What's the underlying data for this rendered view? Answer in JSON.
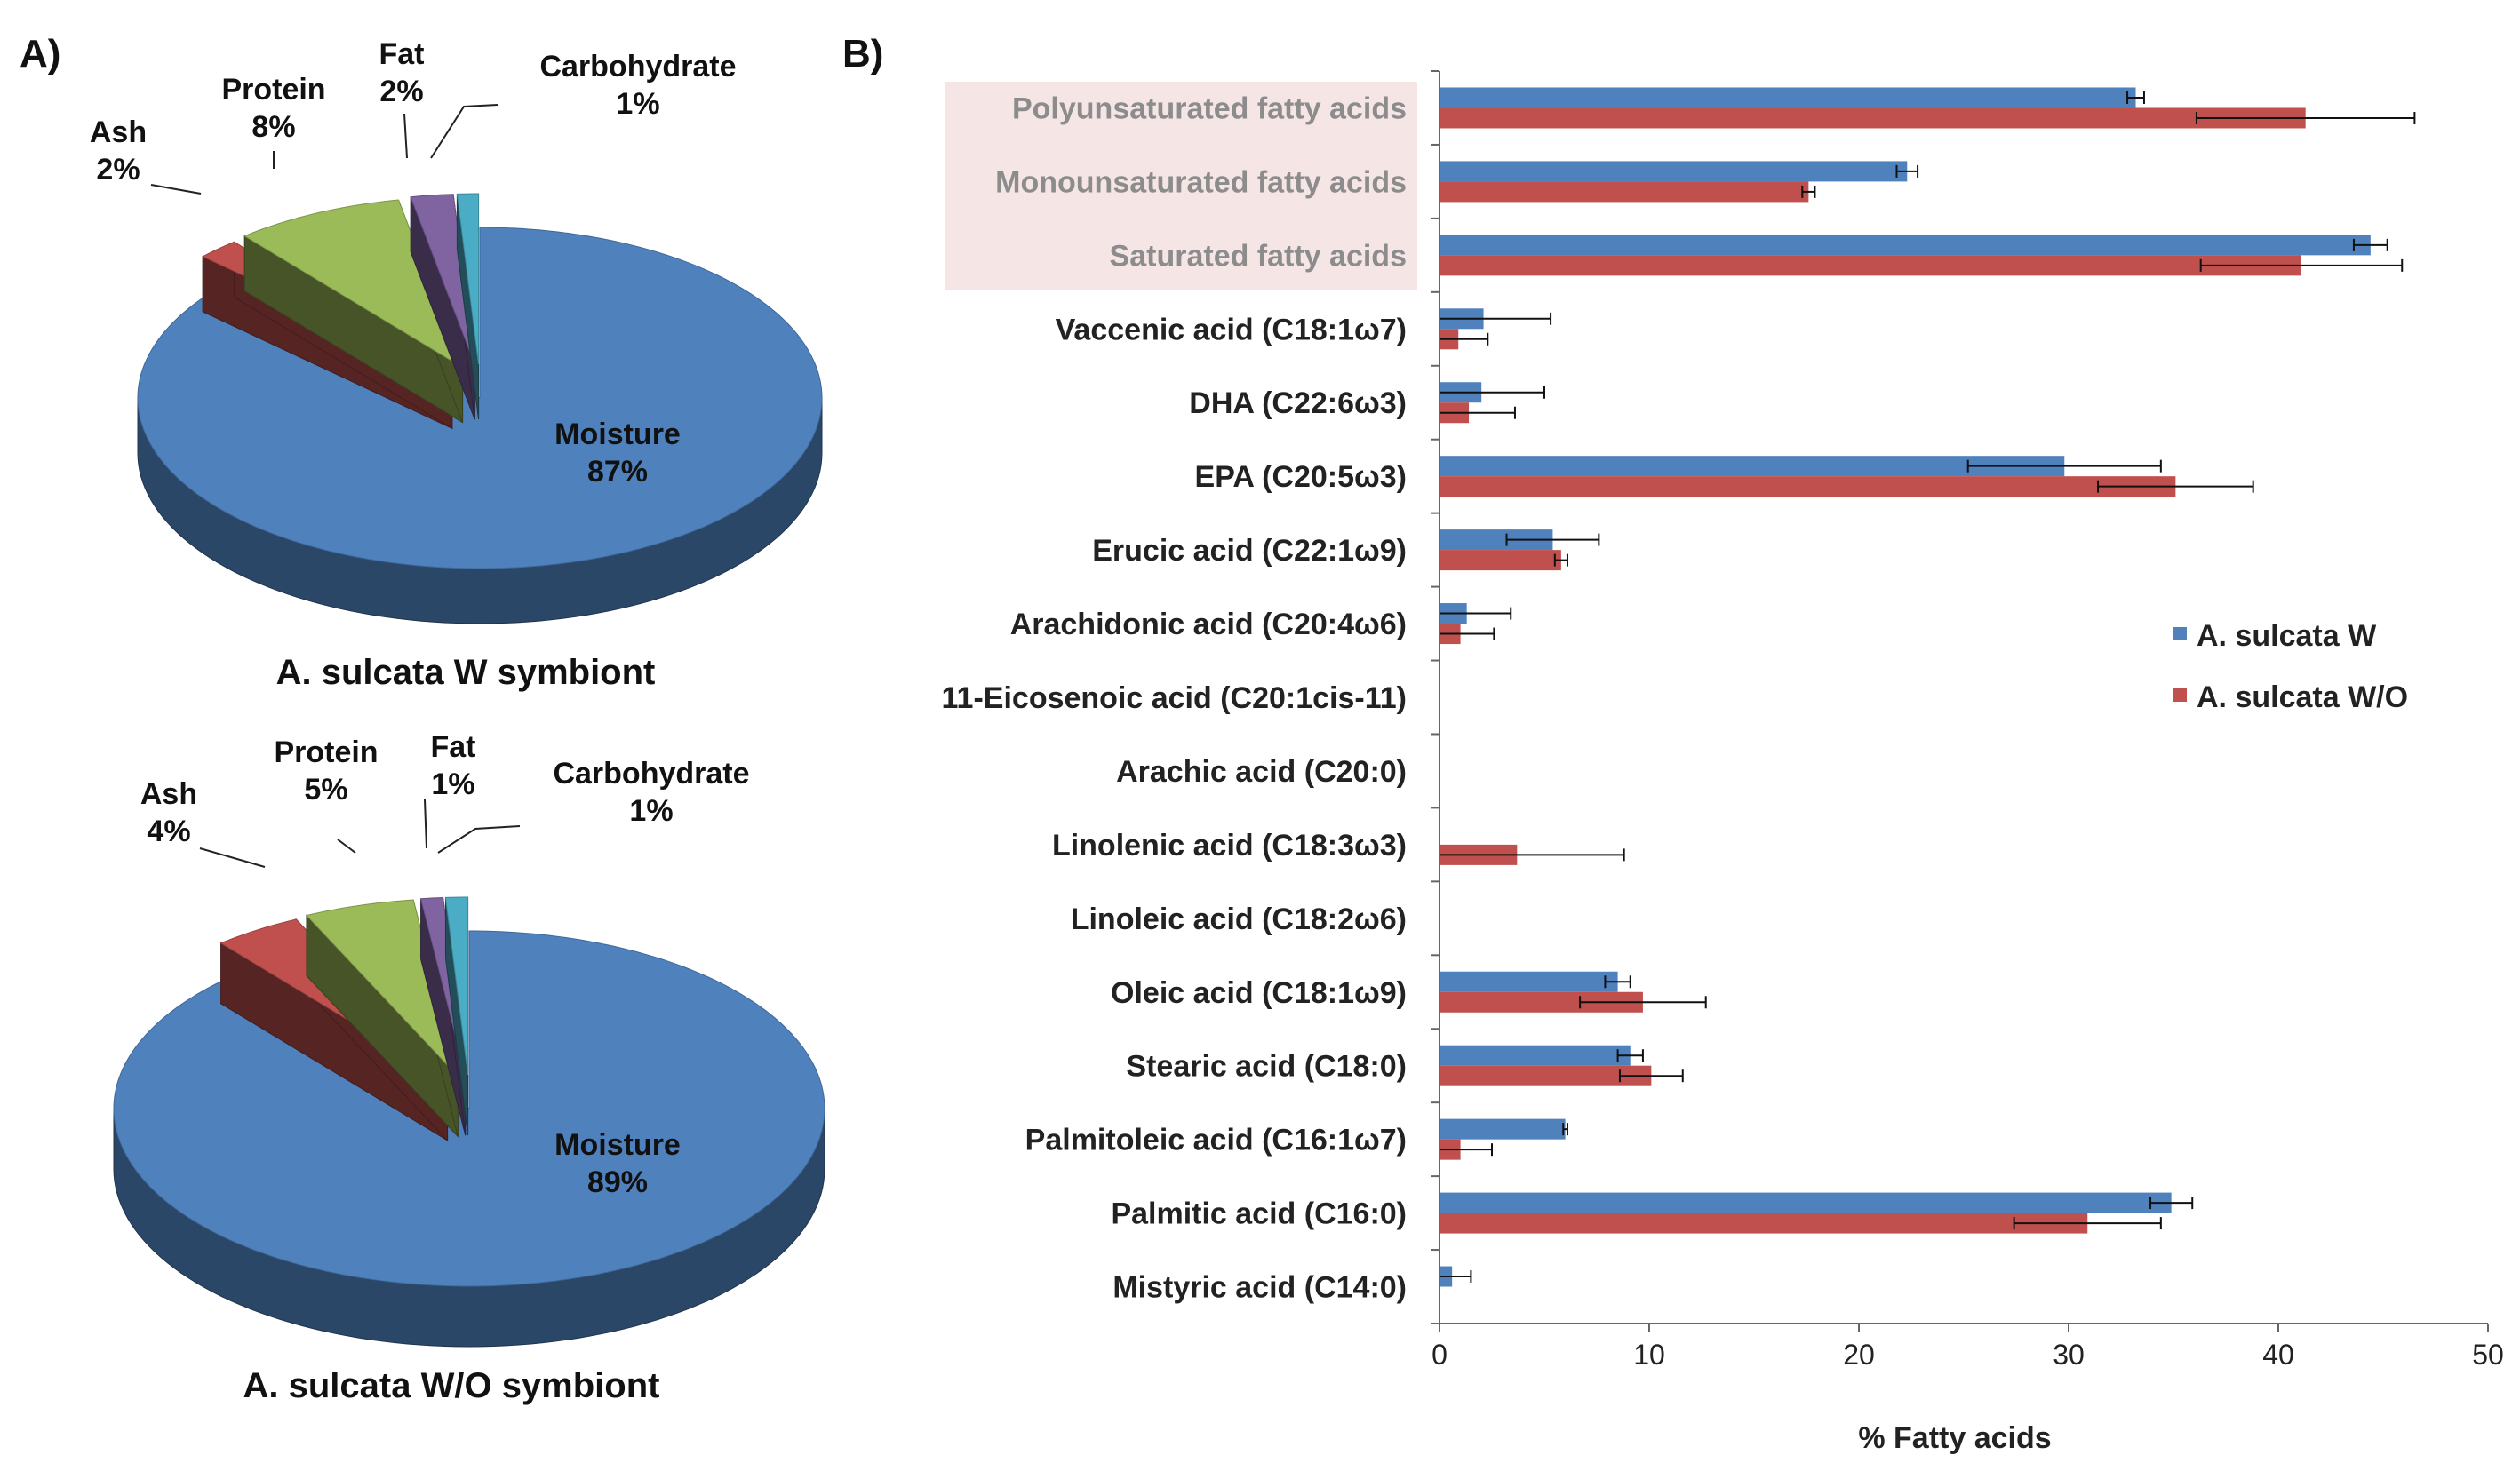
{
  "chart_data": [
    {
      "panel": "A)",
      "type": "pie",
      "title": "A. sulcata W symbiont",
      "slices": [
        {
          "label": "Moisture",
          "value": 87,
          "display": "87%",
          "color": "#4F81BD"
        },
        {
          "label": "Ash",
          "value": 2,
          "display": "2%",
          "color": "#C0504D"
        },
        {
          "label": "Protein",
          "value": 8,
          "display": "8%",
          "color": "#9BBB59"
        },
        {
          "label": "Fat",
          "value": 2,
          "display": "2%",
          "color": "#8064A2"
        },
        {
          "label": "Carbohydrate",
          "value": 1,
          "display": "1%",
          "color": "#4BACC6"
        }
      ]
    },
    {
      "type": "pie",
      "title": "A. sulcata W/O symbiont",
      "slices": [
        {
          "label": "Moisture",
          "value": 89,
          "display": "89%",
          "color": "#4F81BD"
        },
        {
          "label": "Ash",
          "value": 4,
          "display": "4%",
          "color": "#C0504D"
        },
        {
          "label": "Protein",
          "value": 5,
          "display": "5%",
          "color": "#9BBB59"
        },
        {
          "label": "Fat",
          "value": 1,
          "display": "1%",
          "color": "#8064A2"
        },
        {
          "label": "Carbohydrate",
          "value": 1,
          "display": "1%",
          "color": "#4BACC6"
        }
      ]
    },
    {
      "panel": "B)",
      "type": "bar",
      "orientation": "horizontal",
      "xlabel": "% Fatty acids",
      "xlim": [
        0,
        50
      ],
      "xticks": [
        0,
        10,
        20,
        30,
        40,
        50
      ],
      "legend": "right",
      "highlighted_categories": [
        "Polyunsaturated fatty acids",
        "Monounsaturated fatty acids",
        "Saturated fatty acids"
      ],
      "categories": [
        "Polyunsaturated fatty acids",
        "Monounsaturated fatty acids",
        "Saturated fatty acids",
        "Vaccenic acid (C18:1ω7)",
        "DHA (C22:6ω3)",
        "EPA (C20:5ω3)",
        "Erucic acid (C22:1ω9)",
        "Arachidonic acid (C20:4ω6)",
        "11-Eicosenoic acid (C20:1cis-11)",
        "Arachic acid (C20:0)",
        "Linolenic acid (C18:3ω3)",
        "Linoleic acid (C18:2ω6)",
        "Oleic acid (C18:1ω9)",
        "Stearic acid (C18:0)",
        "Palmitoleic acid (C16:1ω7)",
        "Palmitic acid (C16:0)",
        "Mistyric acid (C14:0)"
      ],
      "series": [
        {
          "name": "A. sulcata W",
          "color": "#4F81BD",
          "values": [
            33.2,
            22.3,
            44.4,
            2.1,
            2.0,
            29.8,
            5.4,
            1.3,
            0,
            0,
            0,
            0,
            8.5,
            9.1,
            6.0,
            34.9,
            0.6
          ],
          "errors": [
            0.4,
            0.5,
            0.8,
            3.2,
            3.0,
            4.6,
            2.2,
            2.1,
            0,
            0,
            0,
            0,
            0.6,
            0.6,
            0.1,
            1.0,
            0.9
          ]
        },
        {
          "name": "A. sulcata W/O",
          "color": "#C0504D",
          "values": [
            41.3,
            17.6,
            41.1,
            0.9,
            1.4,
            35.1,
            5.8,
            1.0,
            0,
            0,
            3.7,
            0,
            9.7,
            10.1,
            1.0,
            30.9,
            0
          ],
          "errors": [
            5.2,
            0.3,
            4.8,
            1.4,
            2.2,
            3.7,
            0.3,
            1.6,
            0,
            0,
            5.1,
            0,
            3.0,
            1.5,
            1.5,
            3.5,
            0
          ]
        }
      ]
    }
  ]
}
